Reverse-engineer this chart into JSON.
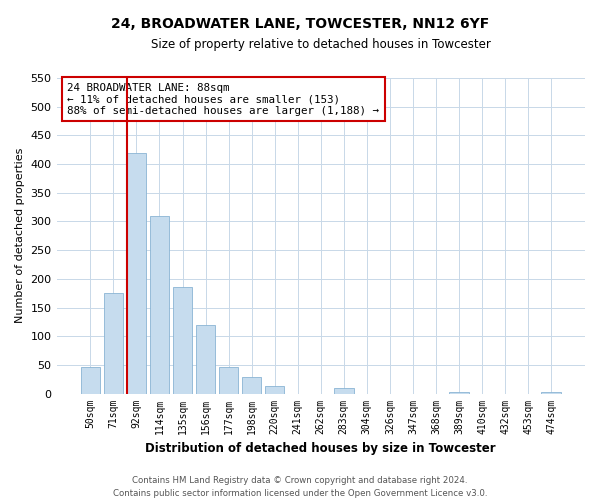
{
  "title": "24, BROADWATER LANE, TOWCESTER, NN12 6YF",
  "subtitle": "Size of property relative to detached houses in Towcester",
  "xlabel": "Distribution of detached houses by size in Towcester",
  "ylabel": "Number of detached properties",
  "bar_labels": [
    "50sqm",
    "71sqm",
    "92sqm",
    "114sqm",
    "135sqm",
    "156sqm",
    "177sqm",
    "198sqm",
    "220sqm",
    "241sqm",
    "262sqm",
    "283sqm",
    "304sqm",
    "326sqm",
    "347sqm",
    "368sqm",
    "389sqm",
    "410sqm",
    "432sqm",
    "453sqm",
    "474sqm"
  ],
  "bar_values": [
    47,
    175,
    420,
    310,
    185,
    120,
    47,
    28,
    13,
    0,
    0,
    10,
    0,
    0,
    0,
    0,
    3,
    0,
    0,
    0,
    2
  ],
  "bar_color": "#c6dcee",
  "bar_edge_color": "#8ab4d4",
  "vline_color": "#cc0000",
  "vline_pos": 1.575,
  "box_text_line1": "24 BROADWATER LANE: 88sqm",
  "box_text_line2": "← 11% of detached houses are smaller (153)",
  "box_text_line3": "88% of semi-detached houses are larger (1,188) →",
  "box_color": "#cc0000",
  "ylim": [
    0,
    550
  ],
  "yticks": [
    0,
    50,
    100,
    150,
    200,
    250,
    300,
    350,
    400,
    450,
    500,
    550
  ],
  "footer_line1": "Contains HM Land Registry data © Crown copyright and database right 2024.",
  "footer_line2": "Contains public sector information licensed under the Open Government Licence v3.0.",
  "bg_color": "#ffffff",
  "grid_color": "#c8d8e8"
}
